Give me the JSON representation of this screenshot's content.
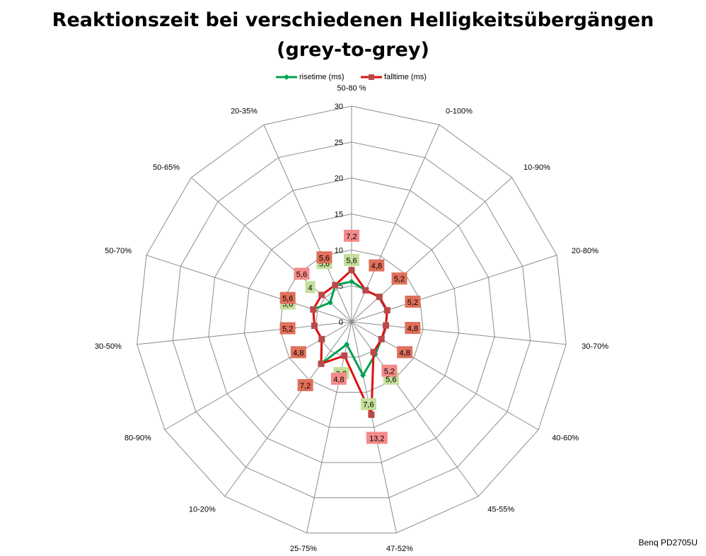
{
  "chart_data": {
    "type": "radar",
    "title_lines": [
      "Reaktionszeit bei verschiedenen Helligkeitsübergängen",
      "(grey-to-grey)"
    ],
    "footer": "Benq PD2705U",
    "categories": [
      "50-80 %",
      "0-100%",
      "10-90%",
      "20-80%",
      "30-70%",
      "40-60%",
      "45-55%",
      "47-52%",
      "25-75%",
      "10-20%",
      "80-90%",
      "30-50%",
      "50-70%",
      "50-65%",
      "20-35%"
    ],
    "rlim": [
      0,
      30
    ],
    "ticks": [
      "0",
      "5",
      "10",
      "15",
      "20",
      "25",
      "30"
    ],
    "grid": true,
    "legend_position": "top",
    "series": [
      {
        "name": "risetime (ms)",
        "color": "#00A050",
        "marker": "diamond",
        "values": [
          5.6,
          4.8,
          5.2,
          5.2,
          4.8,
          4.8,
          5.6,
          7.6,
          3.2,
          7.2,
          4.8,
          5.2,
          5.6,
          4.0,
          5.6
        ],
        "labels": [
          "5,6",
          null,
          null,
          null,
          null,
          null,
          "5,6",
          "7,6",
          "3,2",
          null,
          null,
          null,
          "5,6",
          "4",
          "5,6"
        ],
        "label_bg": "#C4DF9B"
      },
      {
        "name": "falltime (ms)",
        "color": "#DD1111",
        "marker": "square",
        "values": [
          7.2,
          4.8,
          5.2,
          5.2,
          4.8,
          4.8,
          5.2,
          13.2,
          4.8,
          7.2,
          4.8,
          5.2,
          5.6,
          5.6,
          5.6
        ],
        "labels": [
          "7,2",
          "4,8",
          "5,2",
          "5,2",
          "4,8",
          "4,8",
          "5,2",
          "13,2",
          "4,8",
          "7,2",
          "4,8",
          "5,2",
          "5,6",
          "5,6",
          "5,6"
        ],
        "label_bg_same": "#E0705A",
        "label_bg_diff": "#F58A8A"
      }
    ]
  }
}
